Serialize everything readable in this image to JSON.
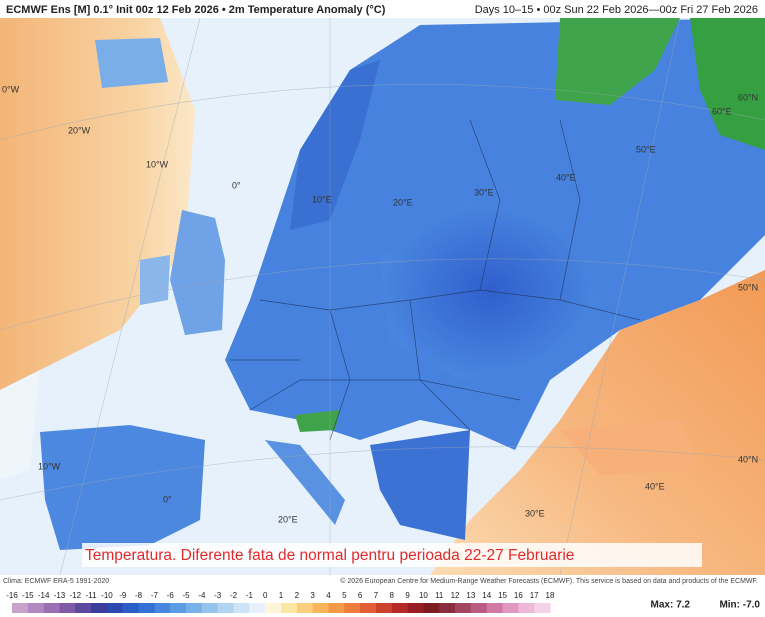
{
  "header": {
    "left": "ECMWF Ens [M] 0.1° Init 00z 12 Feb 2026 • 2m Temperature Anomaly (°C)",
    "right": "Days 10–15 • 00z Sun 22 Feb 2026—00z Fri 27 Feb 2026"
  },
  "map": {
    "labels": [
      "0°W",
      "20°W",
      "10°W",
      "0°",
      "10°E",
      "20°E",
      "30°E",
      "40°E",
      "50°E",
      "60°E",
      "60°N",
      "50°N",
      "10°W",
      "0°",
      "20°E",
      "30°E",
      "40°E",
      "40°N"
    ]
  },
  "caption": "Temperatura. Diferente fata de normal pentru perioada 22-27 Februarie",
  "footer": {
    "left": "Clima: ECMWF ERA-5 1991-2020",
    "right": "© 2026 European Centre for Medium-Range Weather Forecasts (ECMWF). This service is based on data and products of the ECMWF."
  },
  "legend": {
    "ticks": [
      "-16",
      "-15",
      "-14",
      "-13",
      "-12",
      "-11",
      "-10",
      "-9",
      "-8",
      "-7",
      "-6",
      "-5",
      "-4",
      "-3",
      "-2",
      "-1",
      "0",
      "1",
      "2",
      "3",
      "4",
      "5",
      "6",
      "7",
      "8",
      "9",
      "10",
      "11",
      "12",
      "13",
      "14",
      "15",
      "16",
      "17",
      "18"
    ]
  },
  "stats": {
    "max": "Max: 7.2",
    "min": "Min: -7.0"
  }
}
